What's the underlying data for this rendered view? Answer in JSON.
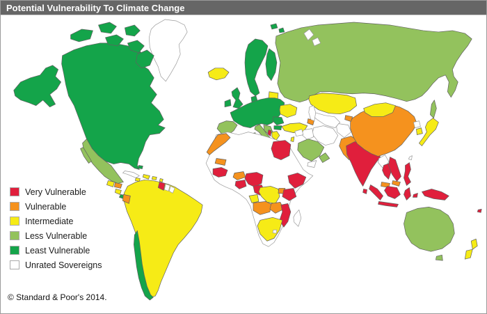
{
  "title": "Potential Vulnerability To Climate Change",
  "copyright": "© Standard & Poor's 2014.",
  "categories": {
    "very": "#E01F3C",
    "vulnerable": "#F5921E",
    "intermediate": "#F6EB16",
    "less": "#93C25D",
    "least": "#14A44A",
    "unrated": "#FFFFFF"
  },
  "legend": {
    "items": [
      {
        "label": "Very Vulnerable",
        "category": "very"
      },
      {
        "label": "Vulnerable",
        "category": "vulnerable"
      },
      {
        "label": "Intermediate",
        "category": "intermediate"
      },
      {
        "label": "Less Vulnerable",
        "category": "less"
      },
      {
        "label": "Least Vulnerable",
        "category": "least"
      },
      {
        "label": "Unrated Sovereigns",
        "category": "unrated"
      }
    ]
  },
  "map": {
    "regions": [
      {
        "id": "greenland",
        "category": "unrated"
      },
      {
        "id": "canada-usa",
        "category": "least"
      },
      {
        "id": "alaska",
        "category": "least"
      },
      {
        "id": "arctic-1",
        "category": "least"
      },
      {
        "id": "arctic-2",
        "category": "least"
      },
      {
        "id": "arctic-3",
        "category": "least"
      },
      {
        "id": "arctic-4",
        "category": "least"
      },
      {
        "id": "arctic-5",
        "category": "least"
      },
      {
        "id": "arctic-6",
        "category": "least"
      },
      {
        "id": "svalbard-1",
        "category": "least"
      },
      {
        "id": "svalbard-2",
        "category": "least"
      },
      {
        "id": "novaya-zemlya-1",
        "category": "unrated"
      },
      {
        "id": "novaya-zemlya-2",
        "category": "unrated"
      },
      {
        "id": "mexico",
        "category": "less"
      },
      {
        "id": "baja",
        "category": "less"
      },
      {
        "id": "guatemala",
        "category": "intermediate"
      },
      {
        "id": "honduras",
        "category": "vulnerable"
      },
      {
        "id": "nicaragua",
        "category": "intermediate"
      },
      {
        "id": "costa-rica-panama",
        "category": "least"
      },
      {
        "id": "cuba",
        "category": "unrated"
      },
      {
        "id": "jamaica",
        "category": "intermediate"
      },
      {
        "id": "hispaniola",
        "category": "intermediate"
      },
      {
        "id": "puerto-rico",
        "category": "intermediate"
      },
      {
        "id": "antilles-1",
        "category": "intermediate"
      },
      {
        "id": "antilles-2",
        "category": "intermediate"
      },
      {
        "id": "trinidad",
        "category": "very"
      },
      {
        "id": "bahamas",
        "category": "least"
      },
      {
        "id": "south-america",
        "category": "intermediate"
      },
      {
        "id": "chile",
        "category": "least"
      },
      {
        "id": "ecuador",
        "category": "vulnerable"
      },
      {
        "id": "guyana",
        "category": "very"
      },
      {
        "id": "suriname",
        "category": "unrated"
      },
      {
        "id": "french-guiana",
        "category": "unrated"
      },
      {
        "id": "iceland",
        "category": "intermediate"
      },
      {
        "id": "uk",
        "category": "least"
      },
      {
        "id": "ireland",
        "category": "least"
      },
      {
        "id": "scandinavia",
        "category": "least"
      },
      {
        "id": "denmark",
        "category": "least"
      },
      {
        "id": "finland",
        "category": "least"
      },
      {
        "id": "baltics",
        "category": "intermediate"
      },
      {
        "id": "central-europe",
        "category": "least"
      },
      {
        "id": "iberia",
        "category": "less"
      },
      {
        "id": "italy",
        "category": "less"
      },
      {
        "id": "sicily",
        "category": "less"
      },
      {
        "id": "sardinia",
        "category": "less"
      },
      {
        "id": "balkan-west",
        "category": "less"
      },
      {
        "id": "romania",
        "category": "least"
      },
      {
        "id": "bulgaria",
        "category": "least"
      },
      {
        "id": "albania",
        "category": "very"
      },
      {
        "id": "greece",
        "category": "intermediate"
      },
      {
        "id": "ukraine",
        "category": "intermediate"
      },
      {
        "id": "russia",
        "category": "less"
      },
      {
        "id": "sakhalin",
        "category": "less"
      },
      {
        "id": "turkey",
        "category": "intermediate"
      },
      {
        "id": "caucasus",
        "category": "vulnerable"
      },
      {
        "id": "kazakhstan",
        "category": "intermediate"
      },
      {
        "id": "central-asia",
        "category": "unrated"
      },
      {
        "id": "kyrgyz-tajik",
        "category": "vulnerable"
      },
      {
        "id": "caspian-sea",
        "category": "unrated"
      },
      {
        "id": "iran",
        "category": "unrated"
      },
      {
        "id": "iraq",
        "category": "unrated"
      },
      {
        "id": "syria",
        "category": "unrated"
      },
      {
        "id": "israel",
        "category": "intermediate"
      },
      {
        "id": "saudi-arabia",
        "category": "less"
      },
      {
        "id": "oman",
        "category": "less"
      },
      {
        "id": "yemen",
        "category": "unrated"
      },
      {
        "id": "afghanistan",
        "category": "unrated"
      },
      {
        "id": "pakistan",
        "category": "vulnerable"
      },
      {
        "id": "india",
        "category": "very"
      },
      {
        "id": "sri-lanka",
        "category": "very"
      },
      {
        "id": "china",
        "category": "vulnerable"
      },
      {
        "id": "mongolia",
        "category": "intermediate"
      },
      {
        "id": "myanmar",
        "category": "unrated"
      },
      {
        "id": "thailand",
        "category": "very"
      },
      {
        "id": "vietnam-cambodia",
        "category": "very"
      },
      {
        "id": "malaysia",
        "category": "vulnerable"
      },
      {
        "id": "borneo-malaysia",
        "category": "vulnerable"
      },
      {
        "id": "sumatra",
        "category": "very"
      },
      {
        "id": "java",
        "category": "very"
      },
      {
        "id": "borneo",
        "category": "very"
      },
      {
        "id": "sulawesi",
        "category": "very"
      },
      {
        "id": "moluccas",
        "category": "very"
      },
      {
        "id": "new-guinea",
        "category": "very"
      },
      {
        "id": "philippines",
        "category": "very"
      },
      {
        "id": "taiwan",
        "category": "unrated"
      },
      {
        "id": "japan",
        "category": "intermediate"
      },
      {
        "id": "south-korea",
        "category": "intermediate"
      },
      {
        "id": "north-korea",
        "category": "unrated"
      },
      {
        "id": "africa-base",
        "category": "unrated"
      },
      {
        "id": "morocco",
        "category": "vulnerable"
      },
      {
        "id": "mauritania",
        "category": "vulnerable"
      },
      {
        "id": "senegal",
        "category": "very"
      },
      {
        "id": "burkina-faso",
        "category": "vulnerable"
      },
      {
        "id": "ghana-togo",
        "category": "very"
      },
      {
        "id": "nigeria",
        "category": "very"
      },
      {
        "id": "cameroon",
        "category": "very"
      },
      {
        "id": "gabon",
        "category": "intermediate"
      },
      {
        "id": "drc",
        "category": "intermediate"
      },
      {
        "id": "uganda",
        "category": "vulnerable"
      },
      {
        "id": "ethiopia",
        "category": "very"
      },
      {
        "id": "kenya",
        "category": "very"
      },
      {
        "id": "angola",
        "category": "vulnerable"
      },
      {
        "id": "zambia",
        "category": "vulnerable"
      },
      {
        "id": "mozambique",
        "category": "very"
      },
      {
        "id": "south-africa",
        "category": "intermediate"
      },
      {
        "id": "lesotho",
        "category": "unrated"
      },
      {
        "id": "egypt",
        "category": "very"
      },
      {
        "id": "madagascar",
        "category": "unrated"
      },
      {
        "id": "australia",
        "category": "less"
      },
      {
        "id": "tasmania",
        "category": "less"
      },
      {
        "id": "nz-north",
        "category": "intermediate"
      },
      {
        "id": "nz-south",
        "category": "intermediate"
      },
      {
        "id": "fiji",
        "category": "very"
      }
    ]
  }
}
